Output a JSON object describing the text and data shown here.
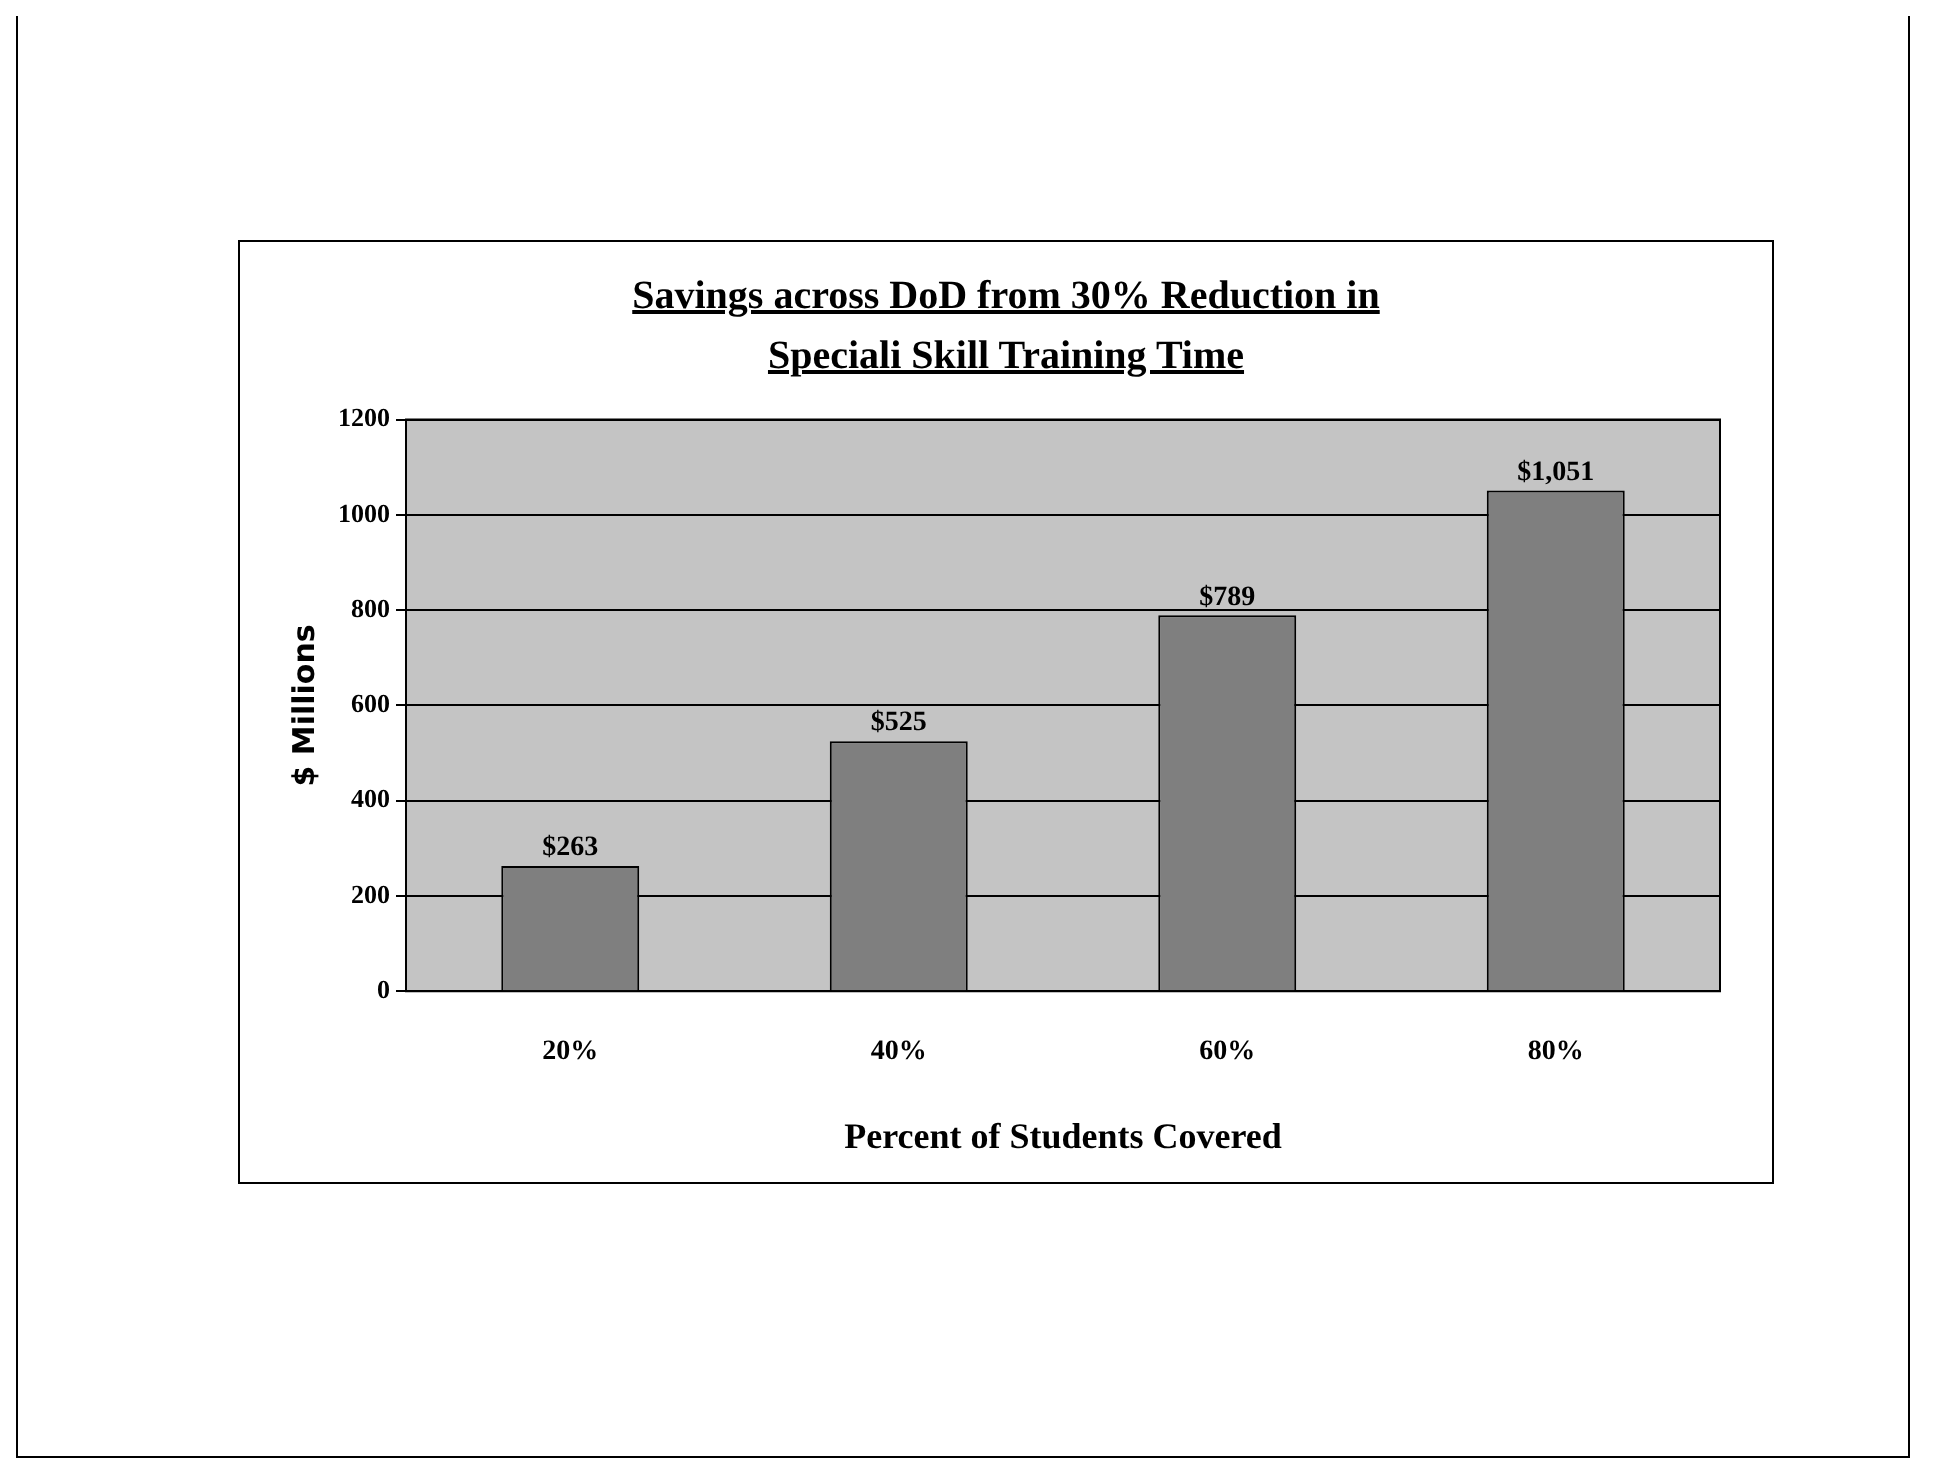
{
  "chart_data": {
    "type": "bar",
    "title": "Savings across DoD from 30% Reduction in Speciali Skill Training Time",
    "xlabel": "Percent of Students Covered",
    "ylabel": "$ Millions",
    "categories": [
      "20%",
      "40%",
      "60%",
      "80%"
    ],
    "values": [
      263,
      525,
      789,
      1051
    ],
    "value_labels": [
      "$263",
      "$525",
      "$789",
      "$1,051"
    ],
    "color": "#7f7f7f",
    "ylim": [
      0,
      1200
    ],
    "yticks": [
      0,
      200,
      400,
      600,
      800,
      1000,
      1200
    ],
    "grid": "y"
  }
}
